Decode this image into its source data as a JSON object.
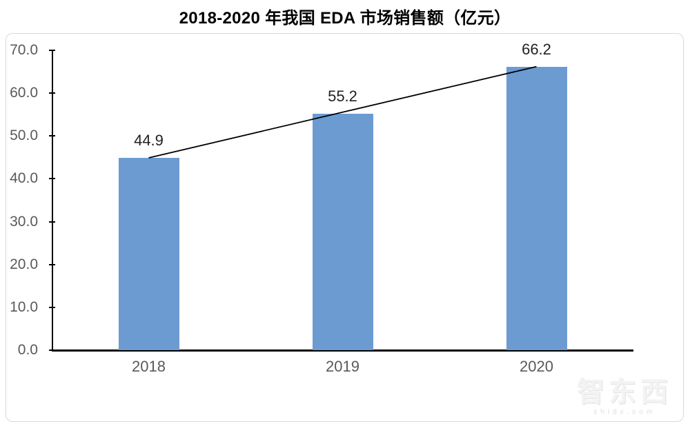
{
  "title": "2018-2020 年我国 EDA 市场销售额（亿元）",
  "chart_data": {
    "type": "bar",
    "title": "2018-2020 年我国 EDA 市场销售额（亿元）",
    "categories": [
      "2018",
      "2019",
      "2020"
    ],
    "series": [
      {
        "name": "EDA市场销售额",
        "values": [
          44.9,
          55.2,
          66.2
        ]
      }
    ],
    "data_labels": [
      "44.9",
      "55.2",
      "66.2"
    ],
    "y_ticks": [
      "70.0",
      "60.0",
      "50.0",
      "40.0",
      "30.0",
      "20.0",
      "10.0",
      "0.0"
    ],
    "ylim": [
      0,
      70
    ],
    "y_tick_step": 10,
    "xlabel": "",
    "ylabel": "",
    "grid": false,
    "legend": "none",
    "bar_color": "#6C9BD2",
    "trend_line_color": "#000000",
    "has_trend_line": true,
    "axis_color": "#000000",
    "tick_label_color": "#595959",
    "data_label_color": "#1f1f1f"
  },
  "watermark": {
    "logo_text": "智东西",
    "domain": "zhidx.com"
  }
}
